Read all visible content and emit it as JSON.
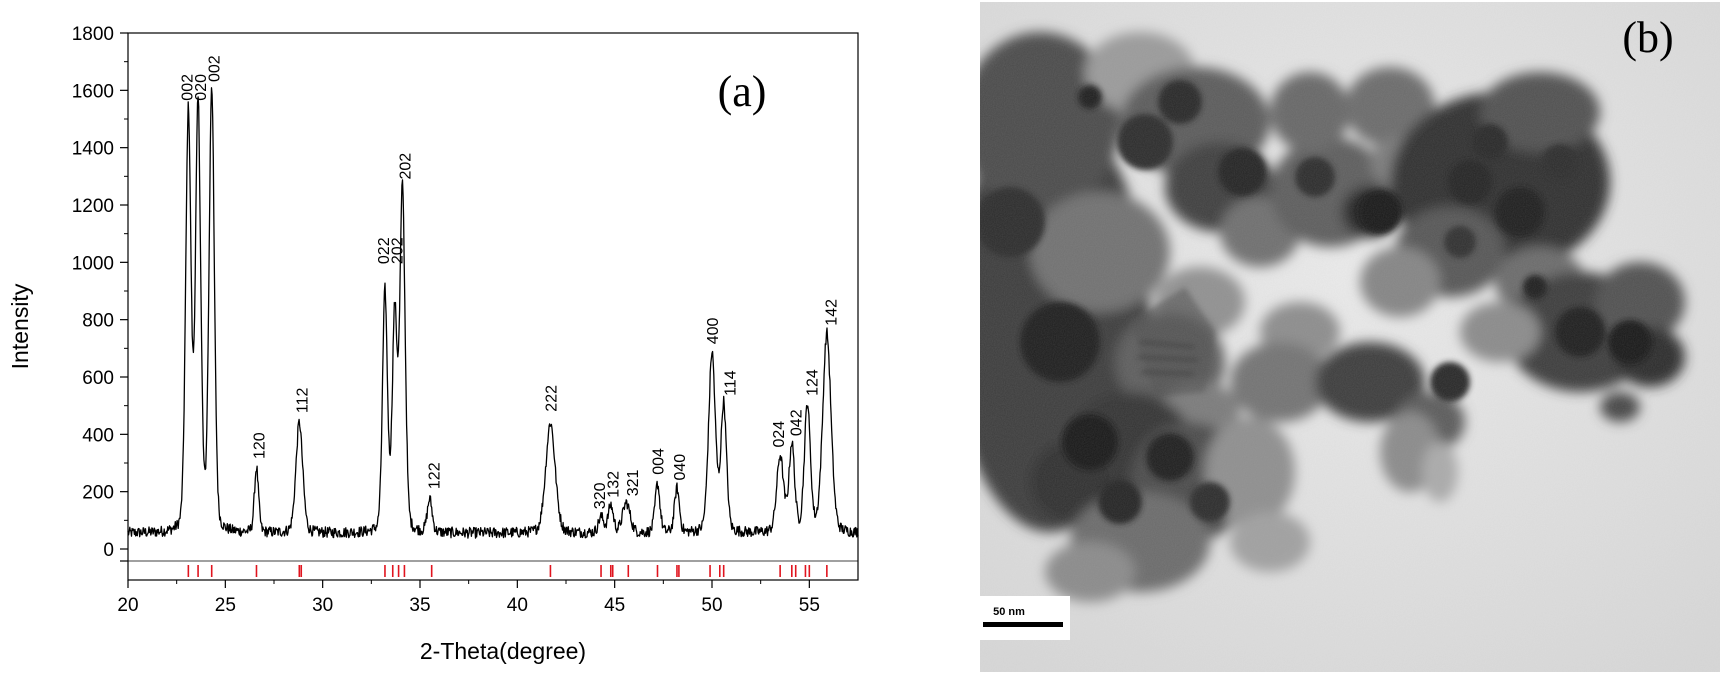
{
  "figure": {
    "panel_a_label": "(a)",
    "panel_b_label": "(b)"
  },
  "chart_data": {
    "type": "line",
    "title": "",
    "xlabel": "2-Theta(degree)",
    "ylabel": "Intensity",
    "xlim": [
      20,
      57.5
    ],
    "ylim": [
      0,
      1800
    ],
    "xticks": [
      20,
      25,
      30,
      35,
      40,
      45,
      50,
      55
    ],
    "yticks": [
      0,
      200,
      400,
      600,
      800,
      1000,
      1200,
      1400,
      1600,
      1800
    ],
    "grid": false,
    "series": [
      {
        "color": "#000000",
        "baseline": 55,
        "peaks": [
          {
            "x": 23.1,
            "y": 1515,
            "w": 0.14
          },
          {
            "x": 23.6,
            "y": 1530,
            "w": 0.14
          },
          {
            "x": 24.3,
            "y": 1600,
            "w": 0.14
          },
          {
            "x": 26.6,
            "y": 280,
            "w": 0.11
          },
          {
            "x": 28.8,
            "y": 440,
            "w": 0.18
          },
          {
            "x": 33.2,
            "y": 890,
            "w": 0.13
          },
          {
            "x": 33.7,
            "y": 800,
            "w": 0.13
          },
          {
            "x": 34.1,
            "y": 1250,
            "w": 0.14
          },
          {
            "x": 35.5,
            "y": 170,
            "w": 0.13
          },
          {
            "x": 41.7,
            "y": 440,
            "w": 0.25
          },
          {
            "x": 44.3,
            "y": 110,
            "w": 0.14
          },
          {
            "x": 44.8,
            "y": 150,
            "w": 0.14
          },
          {
            "x": 45.6,
            "y": 160,
            "w": 0.2
          },
          {
            "x": 47.2,
            "y": 225,
            "w": 0.13
          },
          {
            "x": 48.2,
            "y": 210,
            "w": 0.13
          },
          {
            "x": 50.0,
            "y": 680,
            "w": 0.18
          },
          {
            "x": 50.6,
            "y": 500,
            "w": 0.15
          },
          {
            "x": 53.5,
            "y": 320,
            "w": 0.18
          },
          {
            "x": 54.1,
            "y": 360,
            "w": 0.15
          },
          {
            "x": 54.9,
            "y": 500,
            "w": 0.16
          },
          {
            "x": 55.9,
            "y": 750,
            "w": 0.22
          }
        ]
      }
    ],
    "peak_labels": [
      {
        "text": "002",
        "x": 23.0,
        "y": 1550
      },
      {
        "text": "020",
        "x": 23.7,
        "y": 1550
      },
      {
        "text": "002",
        "x": 24.4,
        "y": 1615
      },
      {
        "text": "120",
        "x": 26.7,
        "y": 300
      },
      {
        "text": "112",
        "x": 28.9,
        "y": 460
      },
      {
        "text": "022",
        "x": 33.1,
        "y": 980
      },
      {
        "text": "202",
        "x": 33.8,
        "y": 980
      },
      {
        "text": "202",
        "x": 34.2,
        "y": 1275
      },
      {
        "text": "122",
        "x": 35.7,
        "y": 195
      },
      {
        "text": "222",
        "x": 41.7,
        "y": 465
      },
      {
        "text": "320",
        "x": 44.2,
        "y": 125
      },
      {
        "text": "132",
        "x": 44.9,
        "y": 165
      },
      {
        "text": "321",
        "x": 45.9,
        "y": 170
      },
      {
        "text": "004",
        "x": 47.2,
        "y": 245
      },
      {
        "text": "040",
        "x": 48.3,
        "y": 225
      },
      {
        "text": "400",
        "x": 50.0,
        "y": 700
      },
      {
        "text": "114",
        "x": 50.9,
        "y": 520
      },
      {
        "text": "024",
        "x": 53.4,
        "y": 340
      },
      {
        "text": "042",
        "x": 54.3,
        "y": 380
      },
      {
        "text": "124",
        "x": 55.1,
        "y": 520
      },
      {
        "text": "142",
        "x": 56.1,
        "y": 765
      }
    ],
    "reference_lines": {
      "color": "#e0141e",
      "positions": [
        23.1,
        23.6,
        24.3,
        26.6,
        28.8,
        28.9,
        33.2,
        33.6,
        33.9,
        34.2,
        35.6,
        41.7,
        44.3,
        44.8,
        44.9,
        45.7,
        47.2,
        48.2,
        48.3,
        49.9,
        50.4,
        50.6,
        53.5,
        54.1,
        54.3,
        54.8,
        55.0,
        55.9
      ]
    }
  },
  "tem_image": {
    "scale_bar_label": "50 nm"
  }
}
